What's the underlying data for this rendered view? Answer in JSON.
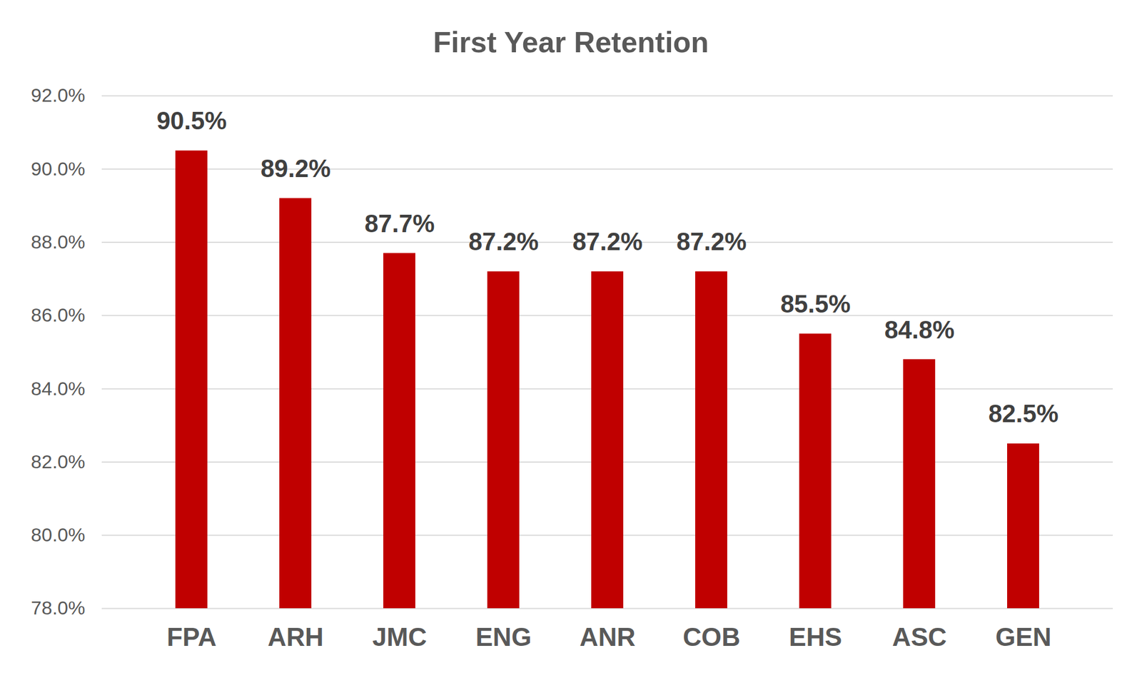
{
  "chart_data": {
    "type": "bar",
    "title": "First Year Retention",
    "categories": [
      "FPA",
      "ARH",
      "JMC",
      "ENG",
      "ANR",
      "COB",
      "EHS",
      "ASC",
      "GEN"
    ],
    "values": [
      90.5,
      89.2,
      87.7,
      87.2,
      87.2,
      87.2,
      85.5,
      84.8,
      82.5
    ],
    "value_labels": [
      "90.5%",
      "89.2%",
      "87.7%",
      "87.2%",
      "87.2%",
      "87.2%",
      "85.5%",
      "84.8%",
      "82.5%"
    ],
    "color": "#c00000",
    "ylim": [
      78,
      92
    ],
    "yticks": [
      {
        "value": 78,
        "label": "78.0%"
      },
      {
        "value": 80,
        "label": "80.0%"
      },
      {
        "value": 82,
        "label": "82.0%"
      },
      {
        "value": 84,
        "label": "84.0%"
      },
      {
        "value": 86,
        "label": "86.0%"
      },
      {
        "value": 88,
        "label": "88.0%"
      },
      {
        "value": 90,
        "label": "90.0%"
      },
      {
        "value": 92,
        "label": "92.0%"
      }
    ],
    "grid": true,
    "data_labels": true
  }
}
